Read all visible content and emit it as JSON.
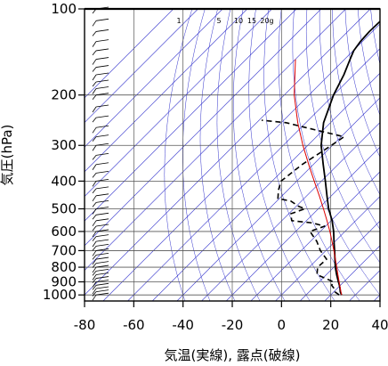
{
  "chart_data": {
    "type": "line",
    "title": "",
    "xlabel": "気温(実線), 露点(破線)",
    "ylabel": "気圧(hPa)",
    "xlim": [
      -80,
      40
    ],
    "ylim": [
      1050,
      100
    ],
    "y_scale": "log",
    "skew": "skew-T",
    "grid": true,
    "x_ticks": [
      "-80",
      "-60",
      "-40",
      "-20",
      "0",
      "20",
      "40"
    ],
    "x_tick_values": [
      -80,
      -60,
      -40,
      -20,
      0,
      20,
      40
    ],
    "y_ticks": [
      "100",
      "200",
      "300",
      "400",
      "500",
      "600",
      "700",
      "800",
      "900",
      "1000"
    ],
    "y_tick_values": [
      100,
      200,
      300,
      400,
      500,
      600,
      700,
      800,
      900,
      1000
    ],
    "mixing_ratio_labels": [
      "1",
      "5",
      "10",
      "15",
      "20g"
    ],
    "mixing_ratio_values": [
      1,
      5,
      10,
      15,
      20
    ],
    "isotherms_every": 10,
    "colors": {
      "isotherm": "#3333cc",
      "adiabat": "#3333cc",
      "temperature": "#000000",
      "dewpoint": "#000000",
      "parcel": "#dd0000",
      "wind": "#000000"
    },
    "series": [
      {
        "style": "solid",
        "pressure": [
          1000,
          975,
          950,
          925,
          900,
          850,
          800,
          750,
          700,
          650,
          600,
          550,
          500,
          450,
          400,
          350,
          300,
          250,
          200,
          170,
          150,
          140,
          130,
          120,
          110,
          100
        ],
        "temperature": [
          24.4,
          22.6,
          21.2,
          19.6,
          17.8,
          14.2,
          10.6,
          7.2,
          3.6,
          -0.4,
          -4.6,
          -9.6,
          -15.8,
          -21.8,
          -28.4,
          -36.0,
          -44.6,
          -52.8,
          -60.0,
          -64.0,
          -67.8,
          -69.8,
          -70.8,
          -71.2,
          -71.0,
          -70.0
        ]
      },
      {
        "style": "dashed",
        "pressure": [
          1000,
          975,
          950,
          925,
          900,
          850,
          800,
          750,
          700,
          650,
          600,
          575,
          560,
          550,
          520,
          500,
          490,
          470,
          460,
          430,
          400,
          350,
          300,
          280,
          260,
          250,
          245
        ],
        "temperature": [
          23.4,
          20.4,
          18.8,
          16.4,
          15.8,
          6.2,
          3.4,
          3.8,
          -2.2,
          -7.4,
          -14.2,
          -10.4,
          -16.8,
          -26.0,
          -29.2,
          -25.4,
          -29.0,
          -34.2,
          -40.6,
          -43.8,
          -46.4,
          -44.6,
          -40.4,
          -38.8,
          -58.0,
          -68.0,
          -79.0
        ]
      },
      {
        "style": "solid-red",
        "pressure": [
          1000,
          950,
          900,
          850,
          800,
          750,
          700,
          650,
          600,
          550,
          500,
          450,
          400,
          350,
          300,
          250,
          200,
          150
        ],
        "temperature": [
          24.4,
          21.3,
          18.1,
          14.7,
          11.2,
          7.4,
          3.3,
          -1.2,
          -6.1,
          -11.7,
          -17.9,
          -24.9,
          -32.9,
          -41.9,
          -52.0,
          -63.3,
          -76.0,
          -90.0
        ]
      }
    ],
    "wind_barb_levels": [
      1000,
      975,
      950,
      925,
      900,
      875,
      850,
      825,
      800,
      775,
      750,
      725,
      700,
      675,
      650,
      625,
      600,
      575,
      550,
      525,
      500,
      475,
      450,
      425,
      400,
      375,
      350,
      325,
      300,
      280,
      260,
      240,
      220,
      200,
      190,
      180,
      170,
      160,
      150,
      140,
      130,
      120,
      110,
      100
    ]
  }
}
